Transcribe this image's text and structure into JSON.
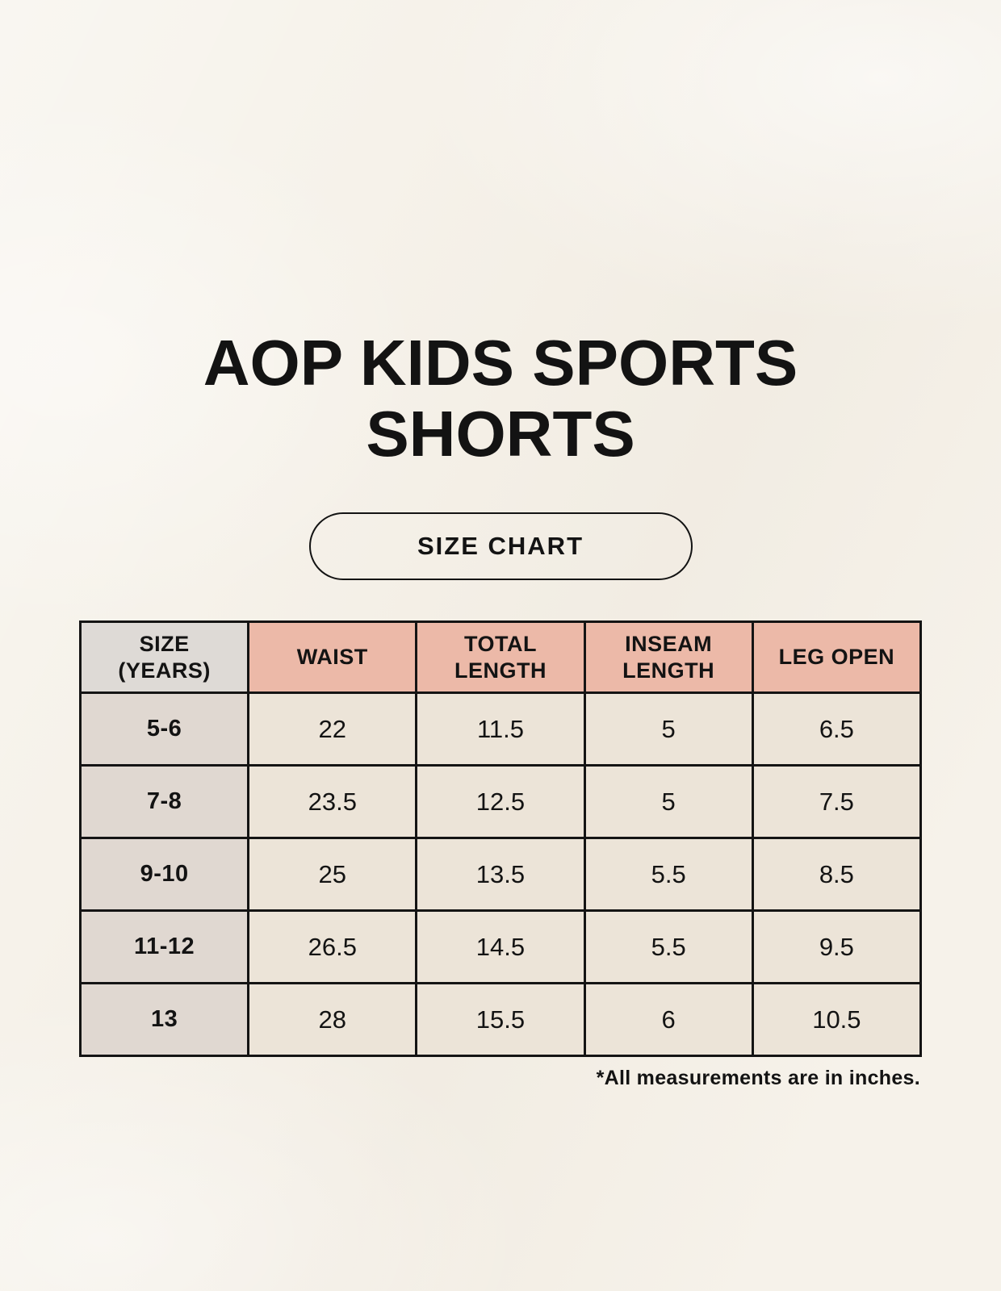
{
  "header": {
    "title_line1": "AOP KIDS SPORTS",
    "title_line2": "SHORTS"
  },
  "badge": {
    "label": "SIZE CHART"
  },
  "chart_data": {
    "type": "table",
    "title": "AOP KIDS SPORTS SHORTS",
    "columns": [
      "SIZE (YEARS)",
      "WAIST",
      "TOTAL LENGTH",
      "INSEAM LENGTH",
      "LEG OPEN"
    ],
    "rows": [
      [
        "5-6",
        "22",
        "11.5",
        "5",
        "6.5"
      ],
      [
        "7-8",
        "23.5",
        "12.5",
        "5",
        "7.5"
      ],
      [
        "9-10",
        "25",
        "13.5",
        "5.5",
        "8.5"
      ],
      [
        "11-12",
        "26.5",
        "14.5",
        "5.5",
        "9.5"
      ],
      [
        "13",
        "28",
        "15.5",
        "6",
        "10.5"
      ]
    ],
    "footnote": "*All measurements are in inches."
  },
  "colors": {
    "background": "#f6f2ea",
    "header_accent": "#ecb9a8",
    "header_neutral": "#dedad6",
    "row_label_bg": "#e0d8d1",
    "cell_bg": "#ece4d8",
    "border": "#141414",
    "text": "#131313"
  }
}
